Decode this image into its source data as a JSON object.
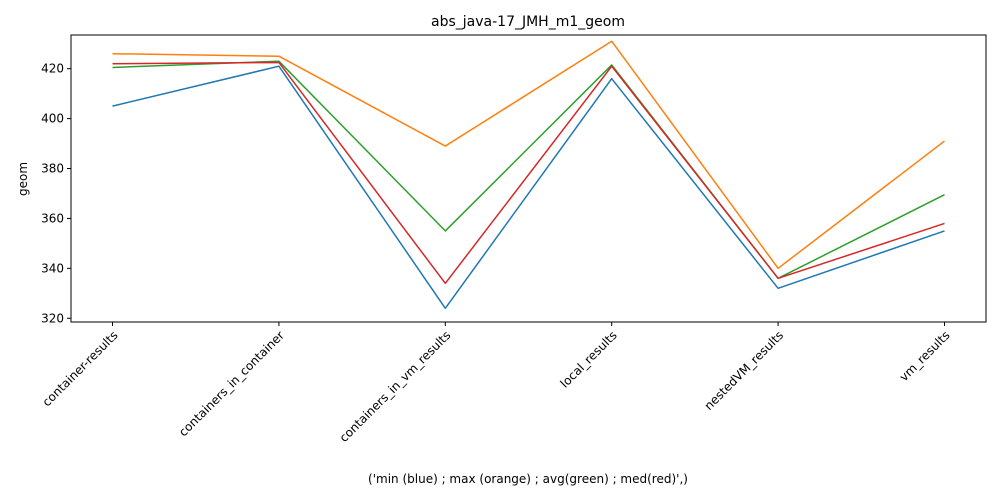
{
  "chart_data": {
    "type": "line",
    "title": "abs_java-17_JMH_m1_geom",
    "xlabel": "('min (blue) ; max (orange) ; avg(green) ; med(red)',)",
    "ylabel": "geom",
    "categories": [
      "container-results",
      "containers_in_container",
      "containers_in_vm_results",
      "local_results",
      "nestedVM_results",
      "vm_results"
    ],
    "ylim": [
      318.5,
      433.5
    ],
    "yticks": [
      320,
      340,
      360,
      380,
      400,
      420
    ],
    "grid": false,
    "series": [
      {
        "color": "#1f77b4",
        "values": [
          405,
          421,
          324,
          416,
          332,
          355
        ]
      },
      {
        "color": "#ff7f0e",
        "values": [
          426,
          425,
          389,
          431,
          340,
          391
        ]
      },
      {
        "color": "#2ca02c",
        "values": [
          420.5,
          423,
          355,
          421.5,
          336,
          369.5
        ]
      },
      {
        "color": "#d62728",
        "values": [
          422,
          422.5,
          334,
          421,
          336,
          358
        ]
      }
    ]
  }
}
